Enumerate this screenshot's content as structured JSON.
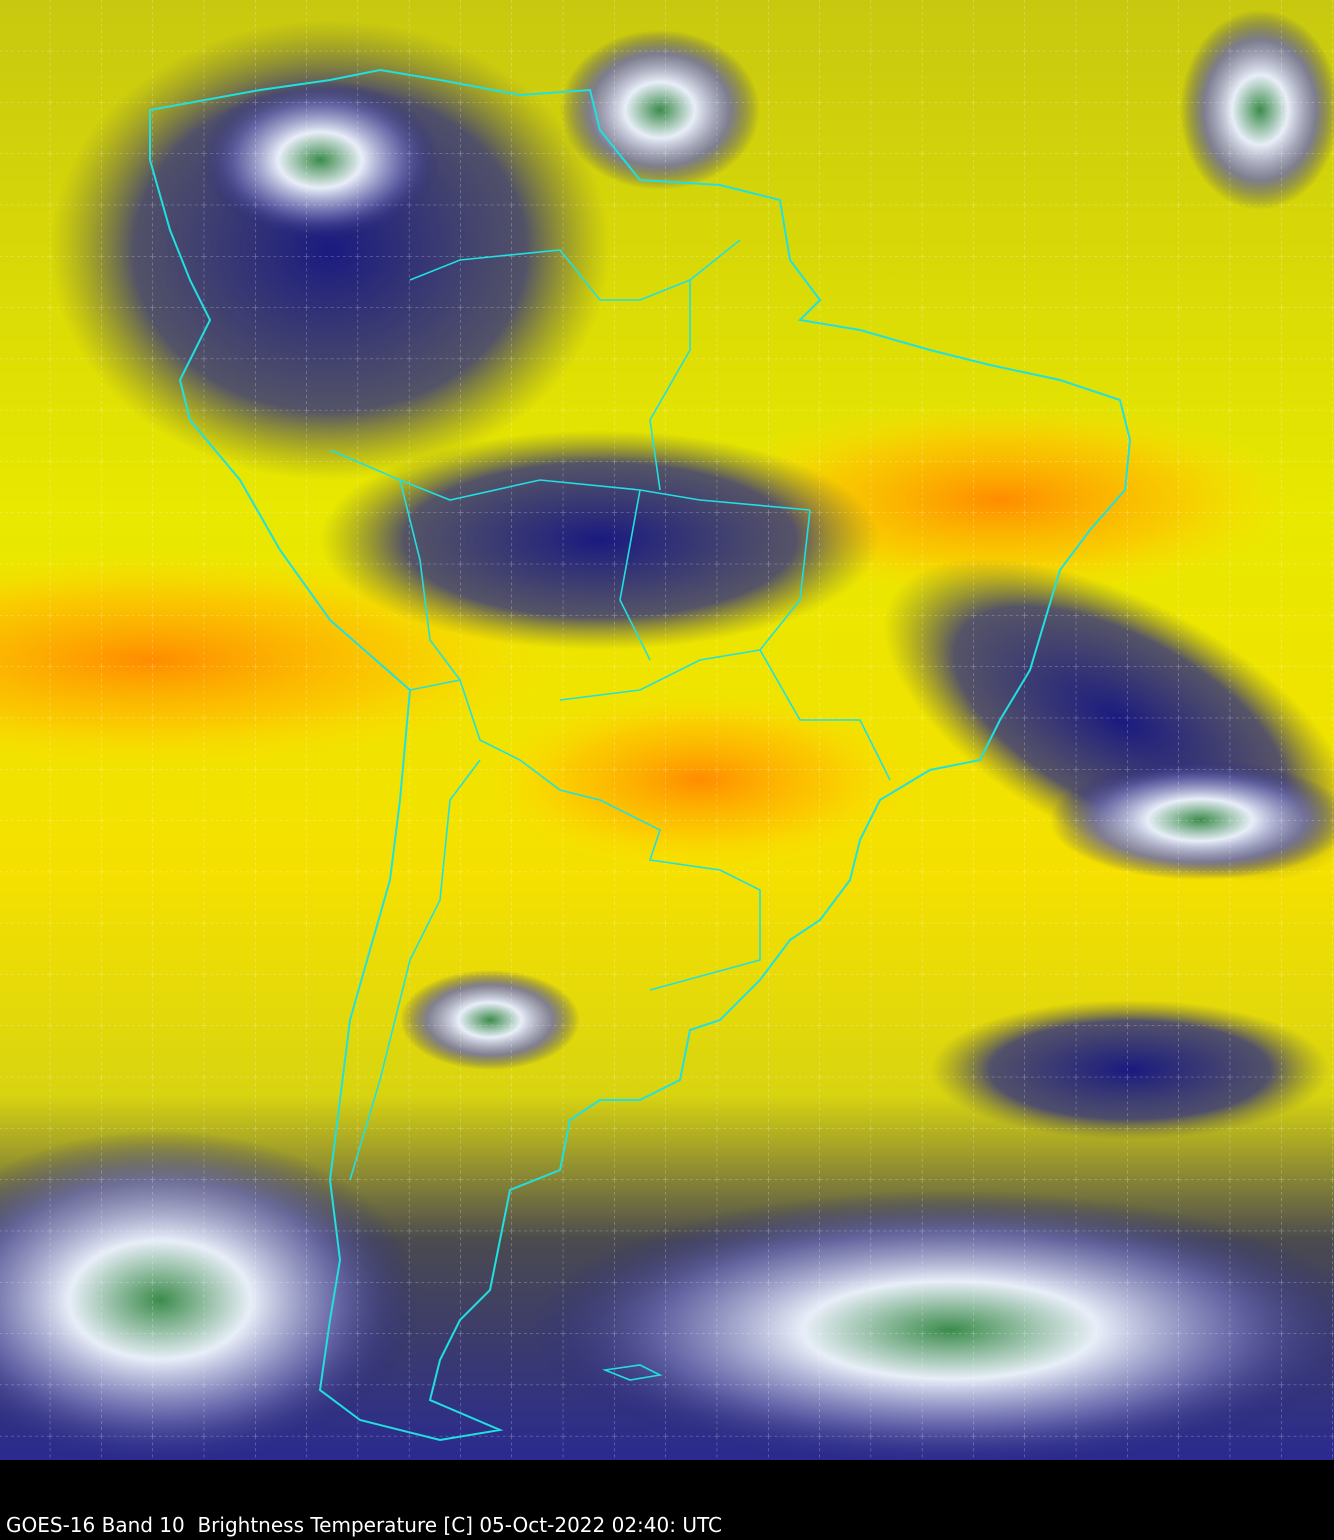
{
  "caption": "GOES-16 Band 10  Brightness Temperature [C] 05-Oct-2022 02:40: UTC",
  "colors": {
    "warm_orange": "#ff9a00",
    "yellow": "#f2f000",
    "olive": "#8a8a10",
    "navy": "#101070",
    "cloud_white": "#f0f0ff",
    "cold_green": "#3a8a3a",
    "border_cyan": "#20e0e0",
    "grid": "#ffffff",
    "background": "#000000"
  }
}
